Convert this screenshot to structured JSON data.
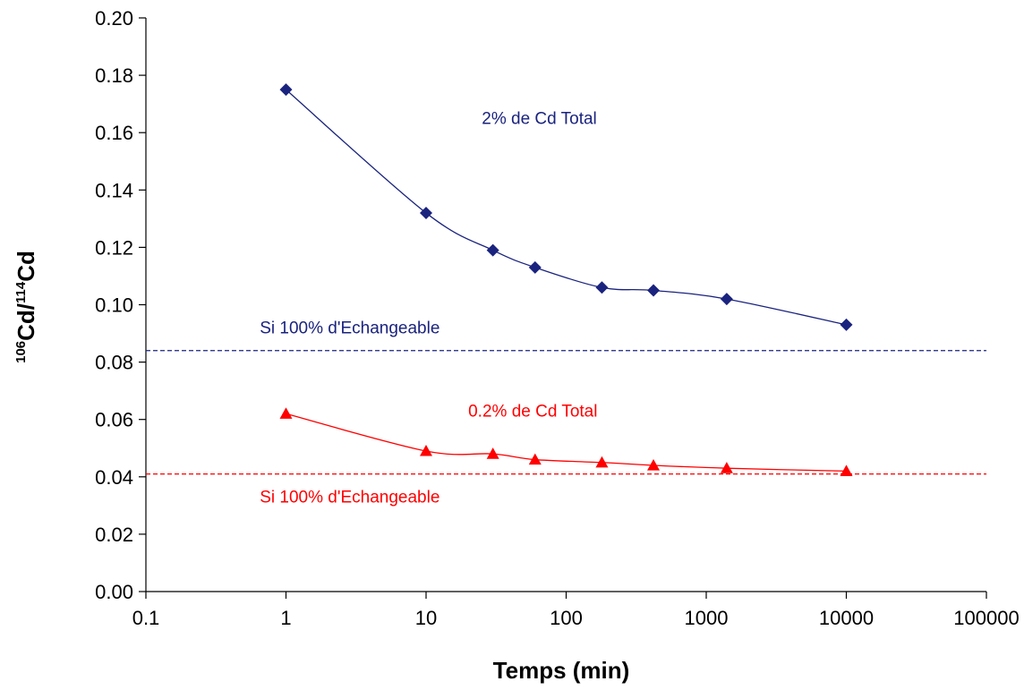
{
  "chart_data": {
    "type": "line",
    "xscale": "log",
    "xlim": [
      0.1,
      100000
    ],
    "ylim": [
      0.0,
      0.2
    ],
    "x_ticks": [
      0.1,
      1,
      10,
      100,
      1000,
      10000,
      100000
    ],
    "x_tick_labels": [
      "0.1",
      "1",
      "10",
      "100",
      "1000",
      "10000",
      "100000"
    ],
    "y_ticks": [
      0.0,
      0.02,
      0.04,
      0.06,
      0.08,
      0.1,
      0.12,
      0.14,
      0.16,
      0.18,
      0.2
    ],
    "y_tick_labels": [
      "0.00",
      "0.02",
      "0.04",
      "0.06",
      "0.08",
      "0.10",
      "0.12",
      "0.14",
      "0.16",
      "0.18",
      "0.20"
    ],
    "xlabel": "Temps (min)",
    "ylabel": {
      "sup1": "106",
      "part1": "Cd/",
      "sup2": "114",
      "part2": "Cd"
    },
    "grid": false,
    "series": [
      {
        "color": "#1a237e",
        "marker": "diamond",
        "x": [
          1,
          10,
          30,
          60,
          180,
          420,
          1400,
          10000
        ],
        "y": [
          0.175,
          0.132,
          0.119,
          0.113,
          0.106,
          0.105,
          0.102,
          0.093
        ]
      },
      {
        "color": "#ff0000",
        "marker": "triangle",
        "x": [
          1,
          10,
          30,
          60,
          180,
          420,
          1400,
          10000
        ],
        "y": [
          0.062,
          0.049,
          0.048,
          0.046,
          0.045,
          0.044,
          0.043,
          0.042
        ]
      }
    ],
    "reference_lines": [
      {
        "y": 0.084,
        "color": "#1a237e",
        "style": "dashed"
      },
      {
        "y": 0.041,
        "color": "#ff0000",
        "style": "dashed"
      }
    ],
    "annotations": [
      {
        "text": "2% de Cd Total",
        "color": "#1a237e",
        "x": 25,
        "y": 0.163
      },
      {
        "text": "Si 100% d'Echangeable",
        "color": "#1a237e",
        "x": 0.65,
        "y": 0.09
      },
      {
        "text": "0.2% de Cd Total",
        "color": "#ff0000",
        "x": 20,
        "y": 0.061
      },
      {
        "text": "Si 100% d'Echangeable",
        "color": "#ff0000",
        "x": 0.65,
        "y": 0.031
      }
    ]
  }
}
